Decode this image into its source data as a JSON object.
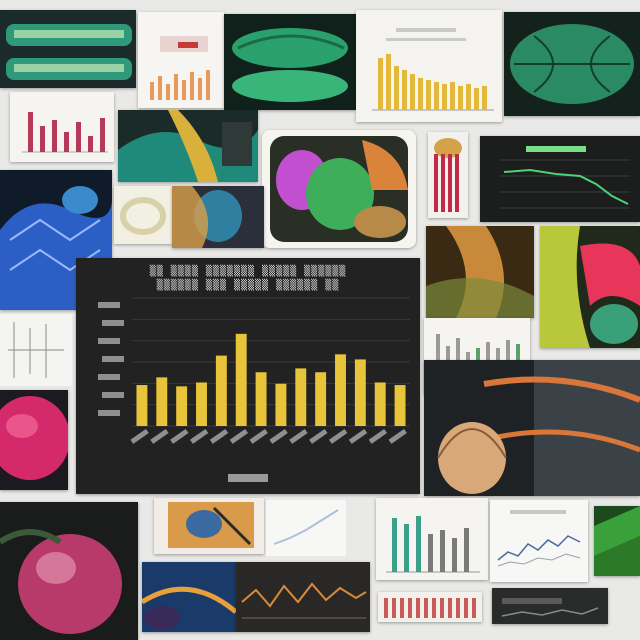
{
  "colors": {
    "page_background": "#e9e9e7",
    "panel_dark": "#222222",
    "bar_yellow": "#e7c43a",
    "green": "#3bb37a",
    "teal": "#1f8a7a",
    "orange": "#d9763a",
    "magenta": "#d42a6c",
    "blue": "#2c5fc6"
  },
  "collage": {
    "description_is_visual_only": true,
    "main_chart": {
      "bar_levels": [
        0.32,
        0.38,
        0.31,
        0.34,
        0.55,
        0.72,
        0.42,
        0.33,
        0.45,
        0.42,
        0.56,
        0.52,
        0.34,
        0.32
      ]
    }
  }
}
